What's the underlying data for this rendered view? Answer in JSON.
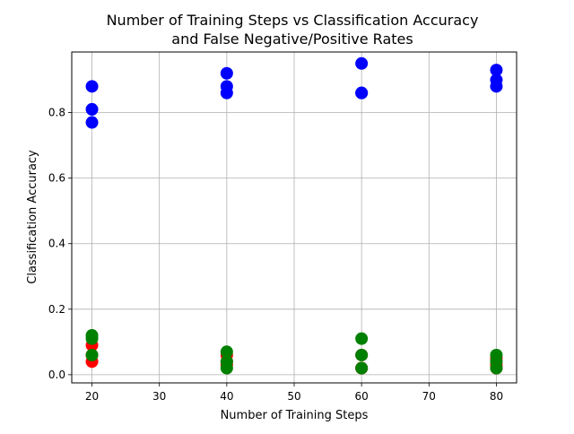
{
  "chart_data": {
    "type": "scatter",
    "title_lines": [
      "Number of Training Steps vs Classification Accuracy",
      "and False Negative/Positive Rates"
    ],
    "xlabel": "Number of Training Steps",
    "ylabel": "Classification Accuracy",
    "xlim": [
      17,
      83
    ],
    "ylim": [
      -0.025,
      0.985
    ],
    "xticks": [
      20,
      30,
      40,
      50,
      60,
      70,
      80
    ],
    "yticks": [
      0.0,
      0.2,
      0.4,
      0.6,
      0.8
    ],
    "grid": true,
    "legend": "none",
    "series": [
      {
        "color": "#ff0000",
        "points": [
          [
            20,
            0.04
          ],
          [
            20,
            0.09
          ],
          [
            20,
            0.06
          ],
          [
            40,
            0.06
          ],
          [
            40,
            0.03
          ],
          [
            40,
            0.04
          ],
          [
            60,
            0.02
          ],
          [
            60,
            0.06
          ],
          [
            60,
            0.02
          ],
          [
            80,
            0.03
          ],
          [
            80,
            0.05
          ],
          [
            80,
            0.02
          ]
        ]
      },
      {
        "color": "#008000",
        "points": [
          [
            20,
            0.12
          ],
          [
            20,
            0.11
          ],
          [
            20,
            0.06
          ],
          [
            40,
            0.07
          ],
          [
            40,
            0.02
          ],
          [
            40,
            0.04
          ],
          [
            60,
            0.11
          ],
          [
            60,
            0.06
          ],
          [
            60,
            0.02
          ],
          [
            80,
            0.06
          ],
          [
            80,
            0.04
          ],
          [
            80,
            0.02
          ]
        ]
      },
      {
        "color": "#0000ff",
        "points": [
          [
            20,
            0.88
          ],
          [
            20,
            0.81
          ],
          [
            20,
            0.77
          ],
          [
            40,
            0.92
          ],
          [
            40,
            0.88
          ],
          [
            40,
            0.86
          ],
          [
            60,
            0.95
          ],
          [
            60,
            0.86
          ],
          [
            60,
            0.86
          ],
          [
            80,
            0.93
          ],
          [
            80,
            0.9
          ],
          [
            80,
            0.88
          ]
        ]
      }
    ]
  }
}
